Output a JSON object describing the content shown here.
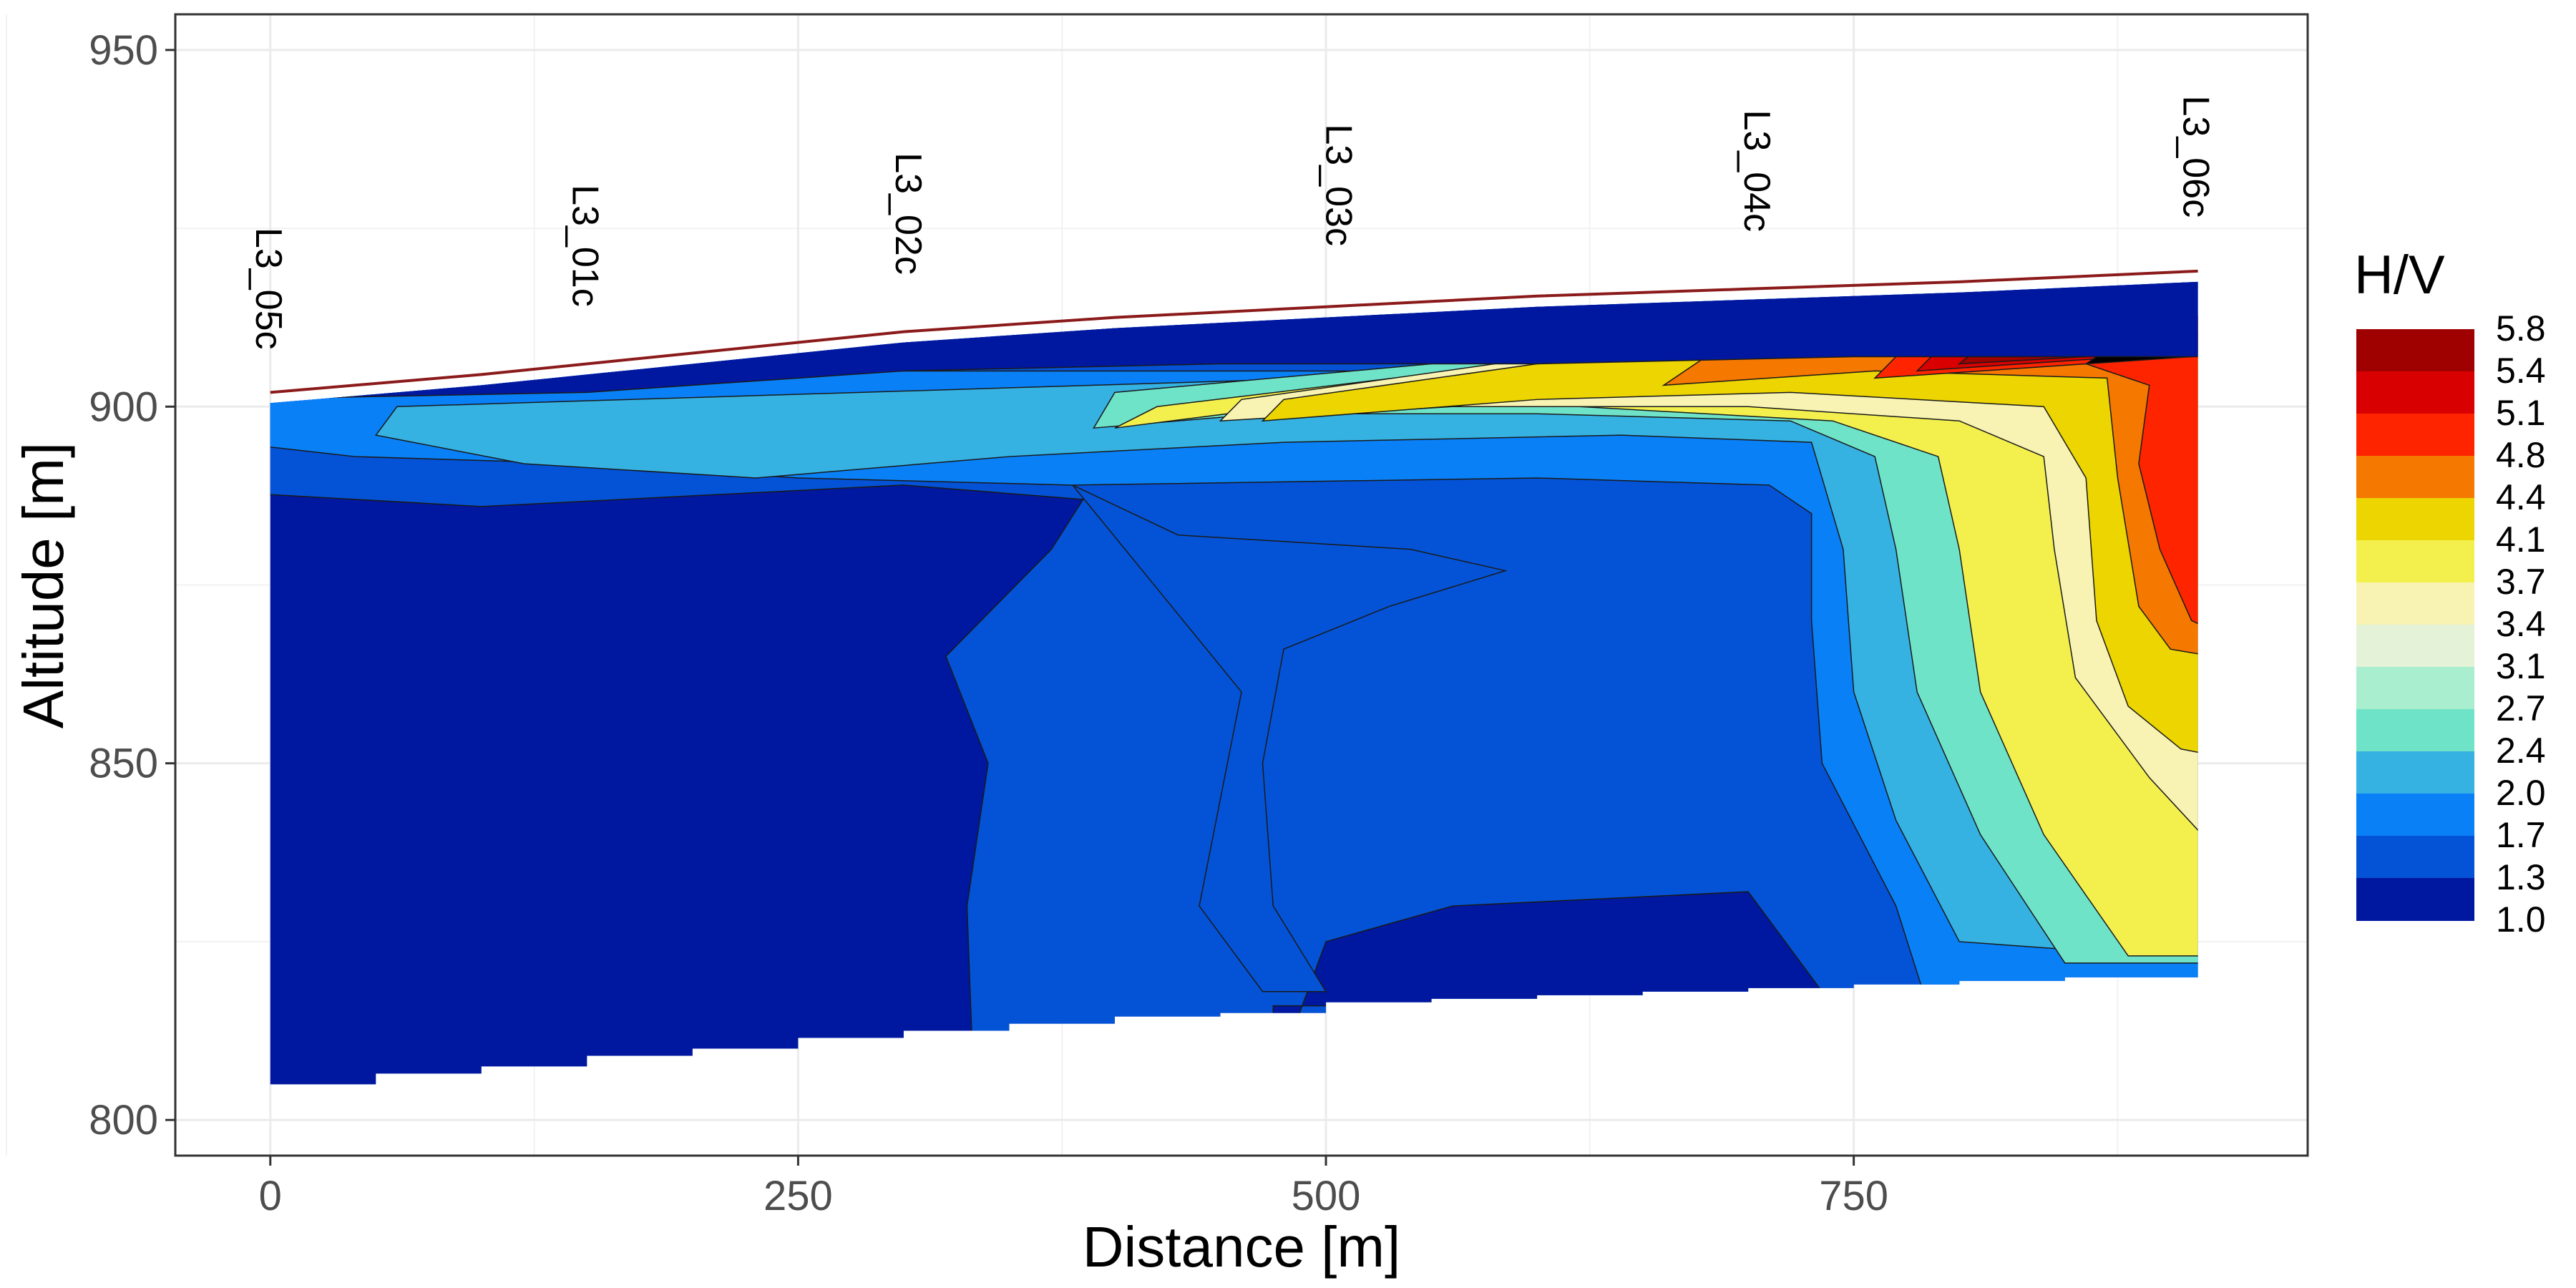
{
  "chart_data": {
    "type": "heatmap",
    "subtype": "filled-contour",
    "xlabel": "Distance [m]",
    "ylabel": "Altitude [m]",
    "xlim": [
      -45,
      965
    ],
    "ylim": [
      795,
      955
    ],
    "xticks": [
      0,
      250,
      500,
      750
    ],
    "yticks": [
      800,
      850,
      900,
      950
    ],
    "grid": true,
    "legend": {
      "title": "H/V",
      "placement": "right",
      "breaks": [
        "5.8",
        "5.4",
        "5.1",
        "4.8",
        "4.4",
        "4.1",
        "3.7",
        "3.4",
        "3.1",
        "2.7",
        "2.4",
        "2.0",
        "1.7",
        "1.3",
        "1.0"
      ],
      "colors": [
        "#9f0000",
        "#d80000",
        "#ff2400",
        "#f57800",
        "#ecd500",
        "#f3f04e",
        "#f8f3b2",
        "#e4f2d7",
        "#a8eecf",
        "#6fe3c8",
        "#36b2e2",
        "#0a80f7",
        "#0453d6",
        "#00189f"
      ]
    },
    "stations": [
      {
        "label": "L3_05c",
        "x": 0
      },
      {
        "label": "L3_01c",
        "x": 150
      },
      {
        "label": "L3_02c",
        "x": 303
      },
      {
        "label": "L3_03c",
        "x": 507
      },
      {
        "label": "L3_04c",
        "x": 705
      },
      {
        "label": "L3_06c",
        "x": 913
      }
    ],
    "surface_profile": {
      "x": [
        0,
        100,
        200,
        300,
        400,
        500,
        600,
        700,
        800,
        913
      ],
      "y": [
        902,
        904.5,
        907.5,
        910.5,
        912.5,
        914,
        915.5,
        916.5,
        917.5,
        919
      ]
    },
    "lower_boundary": {
      "x": [
        0,
        50,
        100,
        150,
        200,
        250,
        300,
        350,
        400,
        450,
        500,
        550,
        600,
        650,
        700,
        750,
        800,
        850,
        913
      ],
      "y": [
        804,
        805,
        806.5,
        807.5,
        809,
        810,
        811.5,
        812.5,
        813.5,
        814.5,
        815,
        816.5,
        817,
        817.5,
        818,
        818.5,
        819,
        819.5,
        820
      ]
    }
  }
}
